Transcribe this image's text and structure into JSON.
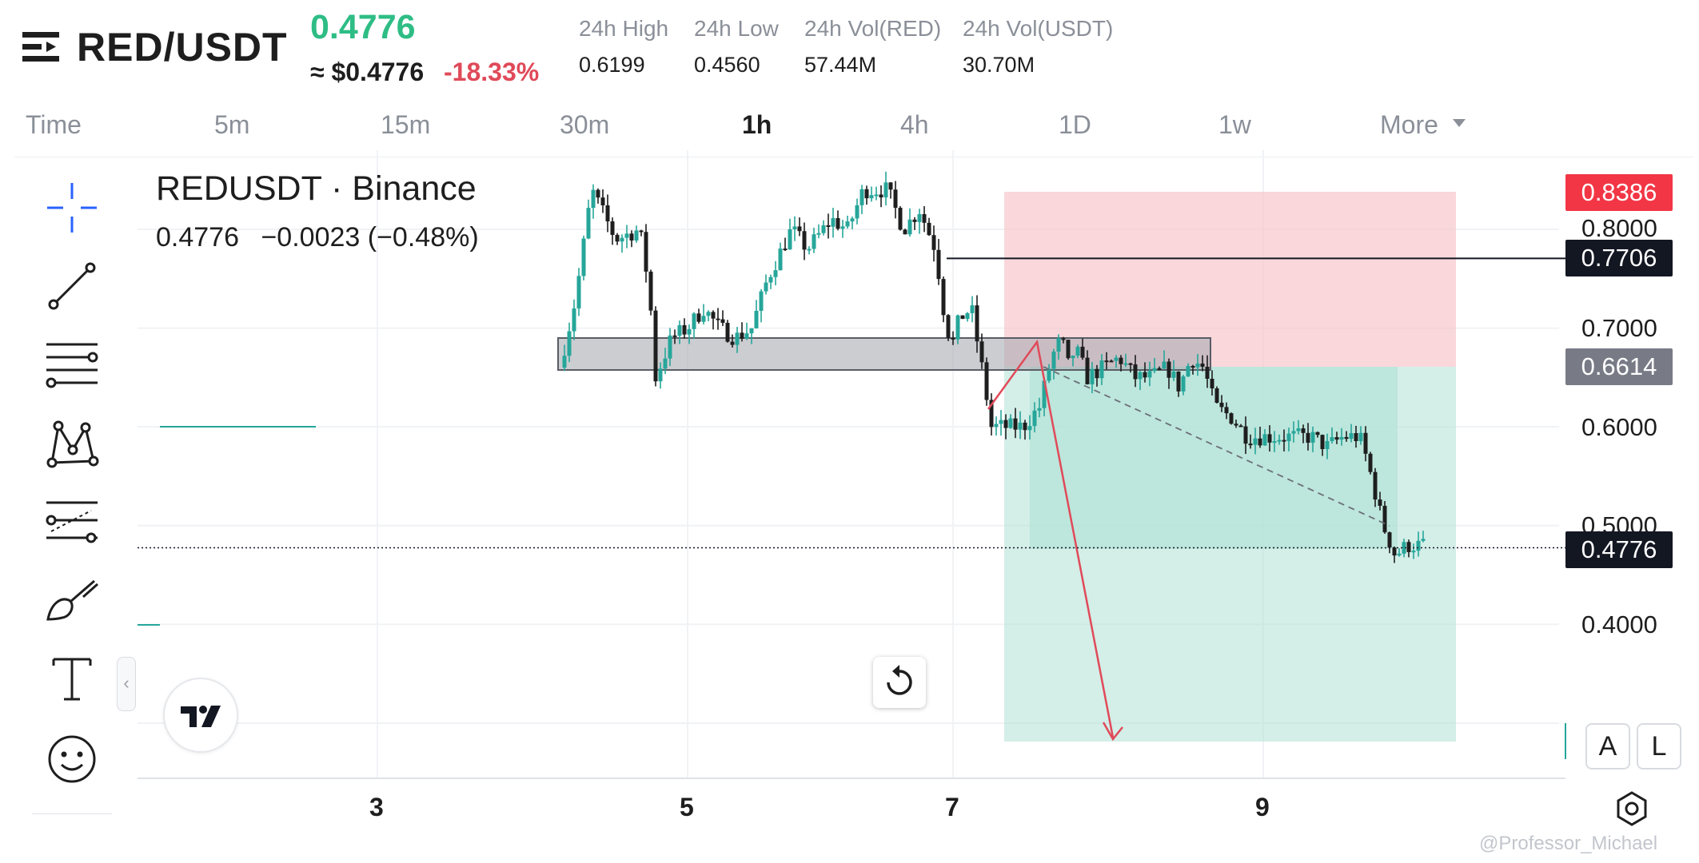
{
  "header": {
    "symbol": "RED/USDT",
    "last_price": "0.4776",
    "approx_usd": "≈ $0.4776",
    "change_pct": "-18.33%",
    "stats": [
      {
        "label": "24h High",
        "value": "0.6199"
      },
      {
        "label": "24h Low",
        "value": "0.4560"
      },
      {
        "label": "24h Vol(RED)",
        "value": "57.44M"
      },
      {
        "label": "24h Vol(USDT)",
        "value": "30.70M"
      }
    ]
  },
  "timeframes": {
    "tabs": [
      "Time",
      "5m",
      "15m",
      "30m",
      "1h",
      "4h",
      "1D",
      "1w",
      "More"
    ],
    "active": "1h"
  },
  "toolbar": {
    "tools": [
      "crosshair-icon",
      "trend-line-icon",
      "fib-retracement-icon",
      "pattern-icon",
      "prediction-icon",
      "brush-icon",
      "text-icon",
      "emoji-icon"
    ],
    "collapse_glyph": "‹"
  },
  "legend": {
    "title": "REDUSDT · Binance",
    "price": "0.4776",
    "change": "−0.0023 (−0.48%)"
  },
  "price_axis": {
    "labels": [
      "0.8000",
      "0.7000",
      "0.6000",
      "0.5000",
      "0.4000"
    ],
    "tags": {
      "stop_loss": "0.8386",
      "horizontal_line": "0.7706",
      "entry": "0.6614",
      "current": "0.4776"
    }
  },
  "date_axis": [
    "3",
    "5",
    "7",
    "9"
  ],
  "buttons": {
    "auto_scale": "A",
    "log_scale": "L"
  },
  "colors": {
    "up": "#26a69a",
    "down": "#1e1e1e",
    "stop_zone": "#f7c9cf",
    "target_zone": "#b7e3d8",
    "arrow": "#e04a59",
    "sl_tag": "#f23645",
    "entry_tag": "#787b86",
    "dark_tag": "#131722"
  },
  "watermark": "@Professor_Michael"
}
